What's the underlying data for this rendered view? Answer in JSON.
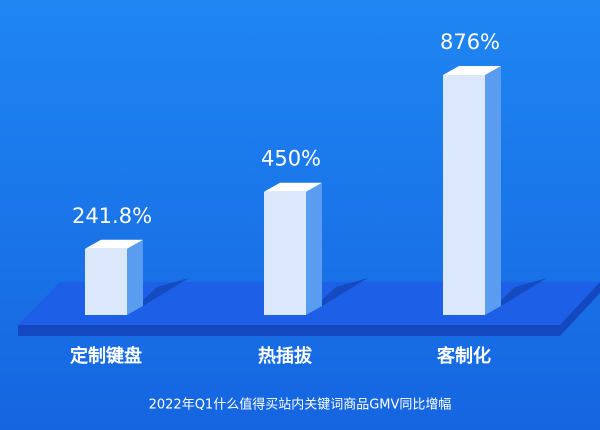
{
  "chart_data": {
    "type": "bar3d",
    "title": "2022年Q1什么值得买站内关键词商品GMV同比增幅",
    "categories": [
      "定制键盘",
      "热插拔",
      "客制化"
    ],
    "values": [
      241.8,
      450,
      876
    ],
    "value_labels": [
      "241.8%",
      "450%",
      "876%"
    ],
    "color": "#dbe8fb"
  }
}
